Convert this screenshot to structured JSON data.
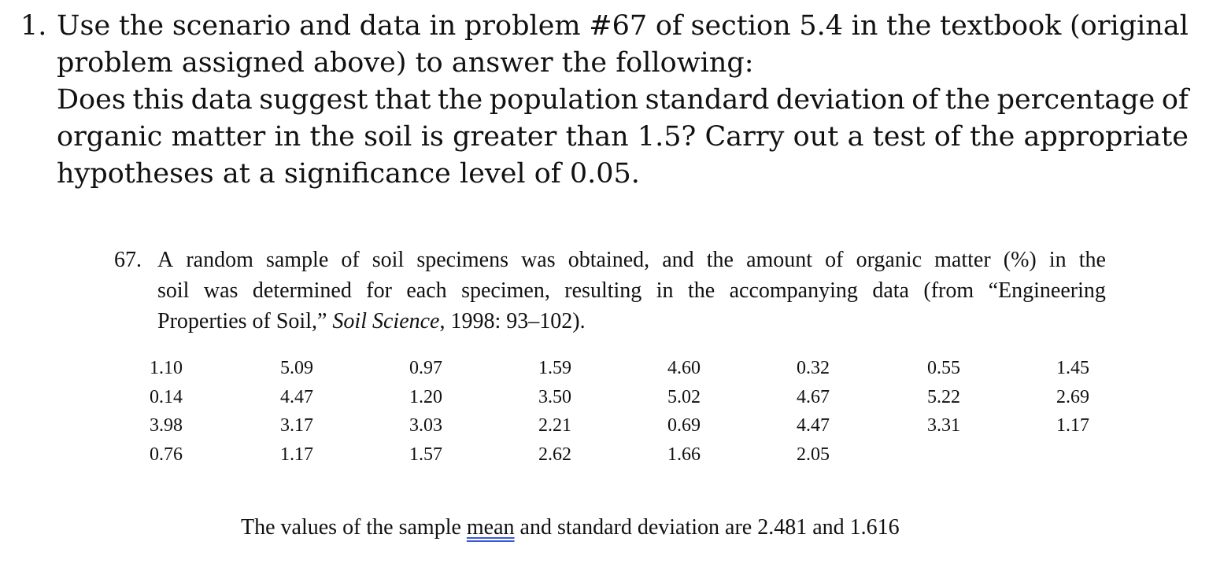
{
  "question": {
    "number": "1.",
    "lines": [
      "Use the scenario and data in problem #67 of section 5.4 in the textbook (original",
      "problem assigned above) to answer the following:",
      "Does this data suggest that the population standard deviation of the percentage of",
      "organic matter in the soil is greater than 1.5?  Carry out a test of the appropriate",
      "hypotheses at a significance level of 0.05."
    ]
  },
  "textbook": {
    "number": "67.",
    "line1": "A random sample of soil specimens was obtained, and the amount of organic matter (%) in the",
    "line2": "soil was determined for each specimen, resulting in the accompanying data (from “Engineering",
    "line3_pre": "Properties of Soil,” ",
    "line3_italic": "Soil Science",
    "line3_post": ", 1998: 93–102)."
  },
  "data": {
    "rows": [
      [
        "1.10",
        "5.09",
        "0.97",
        "1.59",
        "4.60",
        "0.32",
        "0.55",
        "1.45"
      ],
      [
        "0.14",
        "4.47",
        "1.20",
        "3.50",
        "5.02",
        "4.67",
        "5.22",
        "2.69"
      ],
      [
        "3.98",
        "3.17",
        "3.03",
        "2.21",
        "0.69",
        "4.47",
        "3.31",
        "1.17"
      ],
      [
        "0.76",
        "1.17",
        "1.57",
        "2.62",
        "1.66",
        "2.05",
        "",
        ""
      ]
    ]
  },
  "summary": {
    "pre": "The values of the sample ",
    "underlined": "mean",
    "post": " and standard deviation are 2.481 and 1.616"
  },
  "colors": {
    "text": "#111111",
    "underline": "#3b5bdb"
  }
}
